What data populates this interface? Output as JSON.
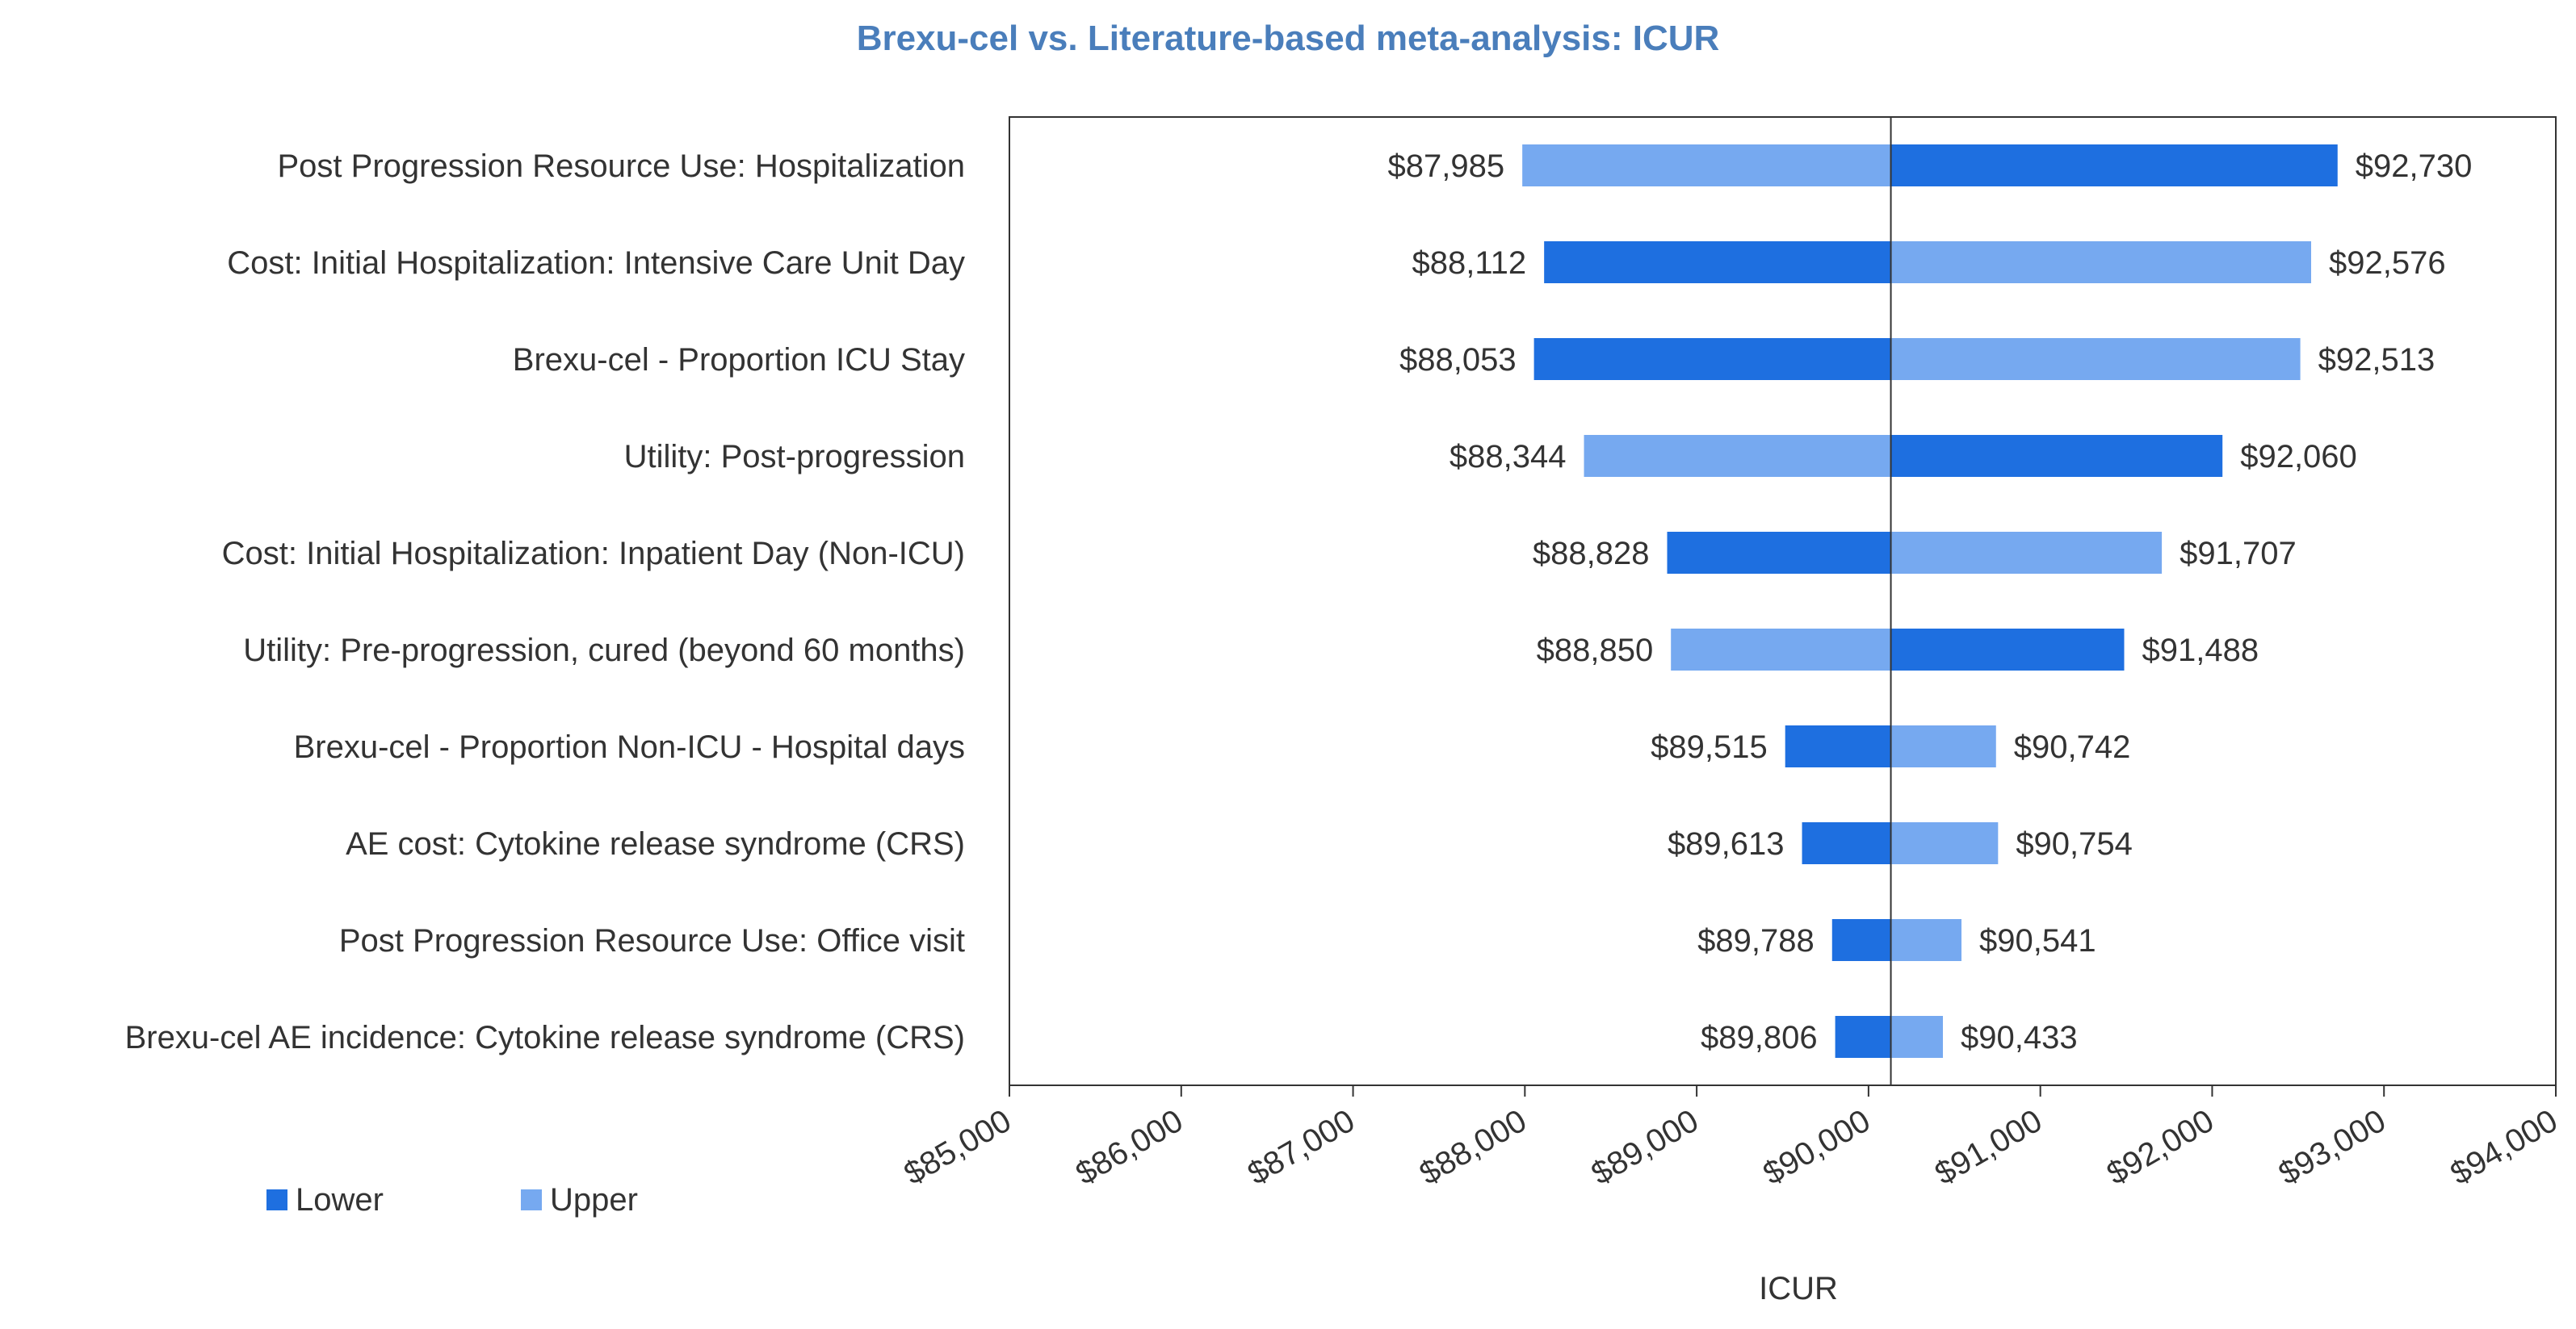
{
  "chart_data": {
    "type": "bar",
    "orientation": "horizontal-tornado",
    "title": "Brexu-cel vs. Literature-based meta-analysis: ICUR",
    "xlabel": "ICUR",
    "ylabel": "",
    "base_value": 90130,
    "xlim": [
      85000,
      94000
    ],
    "xticks": [
      85000,
      86000,
      87000,
      88000,
      89000,
      90000,
      91000,
      92000,
      93000,
      94000
    ],
    "xtick_labels": [
      "$85,000",
      "$86,000",
      "$87,000",
      "$88,000",
      "$89,000",
      "$90,000",
      "$91,000",
      "$92,000",
      "$93,000",
      "$94,000"
    ],
    "legend": {
      "position": "bottom-left",
      "entries": [
        "Lower",
        "Upper"
      ]
    },
    "colors": {
      "Lower": "#1E6FE0",
      "Upper": "#76A9F0"
    },
    "categories": [
      "Post Progression Resource Use: Hospitalization",
      "Cost: Initial Hospitalization: Intensive Care Unit Day",
      "Brexu-cel - Proportion ICU Stay",
      "Utility: Post-progression",
      "Cost: Initial Hospitalization: Inpatient Day (Non-ICU)",
      "Utility: Pre-progression, cured (beyond 60 months)",
      "Brexu-cel - Proportion Non-ICU - Hospital days",
      "AE cost: Cytokine release syndrome (CRS)",
      "Post Progression Resource Use: Office visit",
      "Brexu-cel AE incidence: Cytokine release syndrome (CRS)"
    ],
    "series": [
      {
        "name": "Lower",
        "values": [
          92730,
          88112,
          88053,
          92060,
          88828,
          91488,
          89515,
          89613,
          89788,
          89806
        ]
      },
      {
        "name": "Upper",
        "values": [
          87985,
          92576,
          92513,
          88344,
          91707,
          88850,
          90742,
          90754,
          90541,
          90433
        ]
      }
    ],
    "left_labels": [
      "$87,985",
      "$88,112",
      "$88,053",
      "$88,344",
      "$88,828",
      "$88,850",
      "$89,515",
      "$89,613",
      "$89,788",
      "$89,806"
    ],
    "right_labels": [
      "$92,730",
      "$92,576",
      "$92,513",
      "$92,060",
      "$91,707",
      "$91,488",
      "$90,742",
      "$90,754",
      "$90,541",
      "$90,433"
    ]
  }
}
